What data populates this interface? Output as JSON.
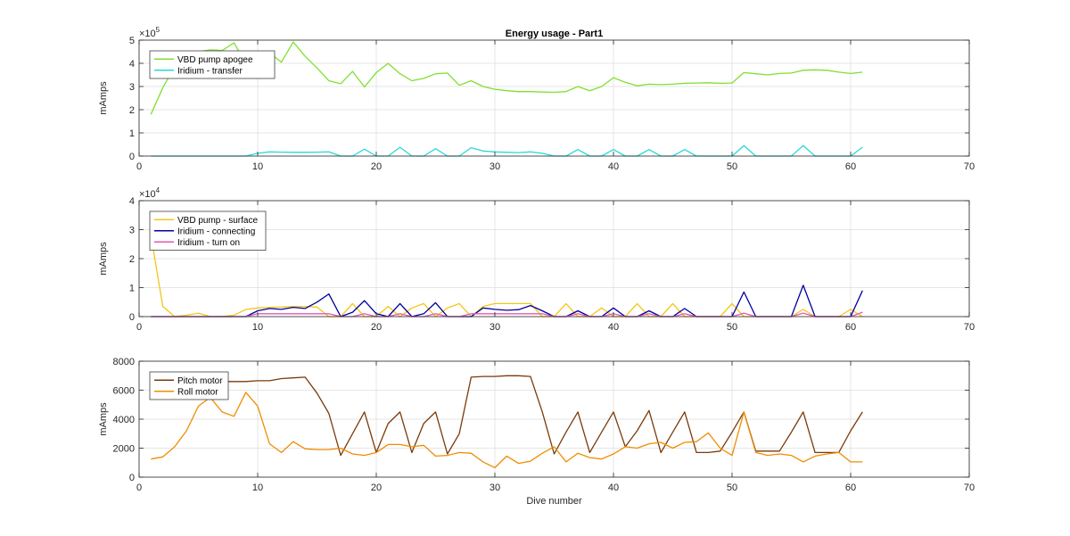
{
  "chart_data": [
    {
      "type": "line",
      "title": "Energy usage - Part1",
      "xlabel": "",
      "ylabel": "mAmps",
      "xlim": [
        0,
        70
      ],
      "ylim": [
        0,
        500000
      ],
      "xticks": [
        0,
        10,
        20,
        30,
        40,
        50,
        60,
        70
      ],
      "yticks": [
        0,
        100000,
        200000,
        300000,
        400000,
        500000
      ],
      "ytick_labels": [
        "0",
        "1",
        "2",
        "3",
        "4",
        "5"
      ],
      "y_exponent": {
        "base": "×10",
        "power": "5"
      },
      "grid": true,
      "legend_location": "top-left",
      "series": [
        {
          "name": "VBD pump apogee",
          "color": "#7fe02f",
          "x": [
            1,
            2,
            3,
            4,
            5,
            6,
            7,
            8,
            9,
            10,
            11,
            12,
            13,
            14,
            15,
            16,
            17,
            18,
            19,
            20,
            21,
            22,
            23,
            24,
            25,
            26,
            27,
            28,
            29,
            30,
            31,
            32,
            33,
            34,
            35,
            36,
            37,
            38,
            39,
            40,
            41,
            42,
            43,
            44,
            45,
            46,
            47,
            48,
            49,
            50,
            51,
            52,
            53,
            54,
            55,
            56,
            57,
            58,
            59,
            60,
            61
          ],
          "y": [
            180000,
            295000,
            385000,
            445000,
            450000,
            458000,
            455000,
            488000,
            400000,
            415000,
            445000,
            405000,
            492000,
            430000,
            380000,
            325000,
            312000,
            365000,
            298000,
            360000,
            400000,
            355000,
            325000,
            335000,
            355000,
            358000,
            305000,
            325000,
            300000,
            288000,
            282000,
            278000,
            278000,
            276000,
            275000,
            278000,
            300000,
            282000,
            300000,
            338000,
            318000,
            303000,
            310000,
            308000,
            310000,
            314000,
            315000,
            316000,
            314000,
            315000,
            360000,
            355000,
            350000,
            356000,
            358000,
            370000,
            372000,
            370000,
            362000,
            356000,
            362000
          ]
        },
        {
          "name": "Iridium - transfer",
          "color": "#2ad8d8",
          "x": [
            1,
            2,
            3,
            4,
            5,
            6,
            7,
            8,
            9,
            10,
            11,
            12,
            13,
            14,
            15,
            16,
            17,
            18,
            19,
            20,
            21,
            22,
            23,
            24,
            25,
            26,
            27,
            28,
            29,
            30,
            31,
            32,
            33,
            34,
            35,
            36,
            37,
            38,
            39,
            40,
            41,
            42,
            43,
            44,
            45,
            46,
            47,
            48,
            49,
            50,
            51,
            52,
            53,
            54,
            55,
            56,
            57,
            58,
            59,
            60,
            61
          ],
          "y": [
            0,
            0,
            0,
            0,
            0,
            0,
            0,
            0,
            0,
            12000,
            18000,
            17000,
            16000,
            16000,
            17000,
            18000,
            0,
            0,
            30000,
            0,
            0,
            38000,
            0,
            0,
            32000,
            0,
            0,
            36000,
            22000,
            18000,
            16000,
            15000,
            18000,
            12000,
            0,
            0,
            28000,
            0,
            0,
            28000,
            0,
            0,
            28000,
            0,
            0,
            28000,
            0,
            0,
            0,
            0,
            45000,
            0,
            0,
            0,
            0,
            45000,
            0,
            0,
            0,
            0,
            38000
          ]
        }
      ]
    },
    {
      "type": "line",
      "title": "",
      "xlabel": "",
      "ylabel": "mAmps",
      "xlim": [
        0,
        70
      ],
      "ylim": [
        0,
        40000
      ],
      "xticks": [
        0,
        10,
        20,
        30,
        40,
        50,
        60,
        70
      ],
      "yticks": [
        0,
        10000,
        20000,
        30000,
        40000
      ],
      "ytick_labels": [
        "0",
        "1",
        "2",
        "3",
        "4"
      ],
      "y_exponent": {
        "base": "×10",
        "power": "4"
      },
      "grid": true,
      "legend_location": "top-left",
      "series": [
        {
          "name": "VBD pump - surface",
          "color": "#f5c518",
          "x": [
            1,
            2,
            3,
            4,
            5,
            6,
            7,
            8,
            9,
            10,
            11,
            12,
            13,
            14,
            15,
            16,
            17,
            18,
            19,
            20,
            21,
            22,
            23,
            24,
            25,
            26,
            27,
            28,
            29,
            30,
            31,
            32,
            33,
            34,
            35,
            36,
            37,
            38,
            39,
            40,
            41,
            42,
            43,
            44,
            45,
            46,
            47,
            48,
            49,
            50,
            51,
            52,
            53,
            54,
            55,
            56,
            57,
            58,
            59,
            60,
            61
          ],
          "y": [
            28000,
            3500,
            0,
            500,
            1200,
            0,
            0,
            500,
            2500,
            3000,
            3200,
            3300,
            3500,
            3500,
            3300,
            0,
            0,
            4500,
            0,
            0,
            3500,
            0,
            3000,
            4500,
            0,
            3000,
            4500,
            0,
            3500,
            4500,
            4500,
            4500,
            4500,
            0,
            0,
            4500,
            0,
            0,
            3000,
            0,
            0,
            4500,
            0,
            0,
            4500,
            0,
            0,
            0,
            0,
            4500,
            0,
            0,
            0,
            0,
            0,
            2500,
            0,
            0,
            0,
            2500,
            0
          ]
        },
        {
          "name": "Iridium - connecting",
          "color": "#0000a0",
          "x": [
            1,
            2,
            3,
            4,
            5,
            6,
            7,
            8,
            9,
            10,
            11,
            12,
            13,
            14,
            15,
            16,
            17,
            18,
            19,
            20,
            21,
            22,
            23,
            24,
            25,
            26,
            27,
            28,
            29,
            30,
            31,
            32,
            33,
            34,
            35,
            36,
            37,
            38,
            39,
            40,
            41,
            42,
            43,
            44,
            45,
            46,
            47,
            48,
            49,
            50,
            51,
            52,
            53,
            54,
            55,
            56,
            57,
            58,
            59,
            60,
            61
          ],
          "y": [
            0,
            0,
            0,
            0,
            0,
            0,
            0,
            0,
            0,
            2000,
            2800,
            2500,
            3200,
            2800,
            5000,
            7800,
            0,
            1500,
            5500,
            1000,
            0,
            4500,
            0,
            1000,
            4800,
            0,
            0,
            0,
            3000,
            2500,
            2200,
            2400,
            3800,
            2000,
            0,
            0,
            2000,
            0,
            0,
            3000,
            0,
            0,
            2000,
            0,
            0,
            2800,
            0,
            0,
            0,
            0,
            8500,
            0,
            0,
            0,
            0,
            10800,
            0,
            0,
            0,
            0,
            9000
          ]
        },
        {
          "name": "Iridium - turn on",
          "color": "#e05ab5",
          "x": [
            1,
            2,
            3,
            4,
            5,
            6,
            7,
            8,
            9,
            10,
            11,
            12,
            13,
            14,
            15,
            16,
            17,
            18,
            19,
            20,
            21,
            22,
            23,
            24,
            25,
            26,
            27,
            28,
            29,
            30,
            31,
            32,
            33,
            34,
            35,
            36,
            37,
            38,
            39,
            40,
            41,
            42,
            43,
            44,
            45,
            46,
            47,
            48,
            49,
            50,
            51,
            52,
            53,
            54,
            55,
            56,
            57,
            58,
            59,
            60,
            61
          ],
          "y": [
            0,
            0,
            0,
            0,
            0,
            0,
            0,
            0,
            0,
            1000,
            1000,
            1000,
            1000,
            1000,
            1000,
            1000,
            0,
            0,
            1000,
            0,
            0,
            1000,
            0,
            0,
            1000,
            0,
            0,
            1000,
            1000,
            1000,
            1000,
            1000,
            1000,
            1000,
            0,
            0,
            1000,
            0,
            0,
            1000,
            0,
            0,
            1000,
            0,
            0,
            1000,
            0,
            0,
            0,
            0,
            1200,
            0,
            0,
            0,
            0,
            1200,
            0,
            0,
            0,
            0,
            1500
          ]
        }
      ]
    },
    {
      "type": "line",
      "title": "",
      "xlabel": "Dive number",
      "ylabel": "mAmps",
      "xlim": [
        0,
        70
      ],
      "ylim": [
        0,
        8000
      ],
      "xticks": [
        0,
        10,
        20,
        30,
        40,
        50,
        60,
        70
      ],
      "yticks": [
        0,
        2000,
        4000,
        6000,
        8000
      ],
      "ytick_labels": [
        "0",
        "2000",
        "4000",
        "6000",
        "8000"
      ],
      "grid": true,
      "legend_location": "top-left",
      "series": [
        {
          "name": "Pitch motor",
          "color": "#7a3a0a",
          "x": [
            1,
            2,
            3,
            4,
            5,
            6,
            7,
            8,
            9,
            10,
            11,
            12,
            13,
            14,
            15,
            16,
            17,
            18,
            19,
            20,
            21,
            22,
            23,
            24,
            25,
            26,
            27,
            28,
            29,
            30,
            31,
            32,
            33,
            34,
            35,
            36,
            37,
            38,
            39,
            40,
            41,
            42,
            43,
            44,
            45,
            46,
            47,
            48,
            49,
            50,
            51,
            52,
            53,
            54,
            55,
            56,
            57,
            58,
            59,
            60,
            61
          ],
          "y": [
            6600,
            6600,
            6600,
            6600,
            6600,
            6600,
            6600,
            6600,
            6600,
            6650,
            6650,
            6800,
            6850,
            6900,
            5800,
            4400,
            1500,
            3000,
            4500,
            1700,
            3700,
            4500,
            1700,
            3700,
            4500,
            1600,
            3000,
            6900,
            6950,
            6950,
            7000,
            7000,
            6950,
            4500,
            1600,
            3100,
            4500,
            1700,
            3100,
            4500,
            2100,
            3200,
            4600,
            1700,
            3100,
            4500,
            1700,
            1700,
            1800,
            3100,
            4500,
            1800,
            1800,
            1800,
            3100,
            4500,
            1700,
            1700,
            1700,
            3200,
            4500
          ]
        },
        {
          "name": "Roll motor",
          "color": "#f08c00",
          "x": [
            1,
            2,
            3,
            4,
            5,
            6,
            7,
            8,
            9,
            10,
            11,
            12,
            13,
            14,
            15,
            16,
            17,
            18,
            19,
            20,
            21,
            22,
            23,
            24,
            25,
            26,
            27,
            28,
            29,
            30,
            31,
            32,
            33,
            34,
            35,
            36,
            37,
            38,
            39,
            40,
            41,
            42,
            43,
            44,
            45,
            46,
            47,
            48,
            49,
            50,
            51,
            52,
            53,
            54,
            55,
            56,
            57,
            58,
            59,
            60,
            61
          ],
          "y": [
            1250,
            1400,
            2100,
            3200,
            4900,
            5500,
            4500,
            4200,
            5850,
            4900,
            2300,
            1700,
            2450,
            1950,
            1900,
            1900,
            2000,
            1600,
            1500,
            1700,
            2250,
            2250,
            2100,
            2200,
            1450,
            1500,
            1700,
            1650,
            1050,
            650,
            1450,
            950,
            1100,
            1650,
            2100,
            1050,
            1650,
            1350,
            1250,
            1600,
            2100,
            2000,
            2300,
            2400,
            2000,
            2400,
            2450,
            3050,
            2000,
            1500,
            4500,
            1700,
            1500,
            1600,
            1500,
            1050,
            1450,
            1600,
            1700,
            1050,
            1050
          ]
        }
      ]
    }
  ]
}
